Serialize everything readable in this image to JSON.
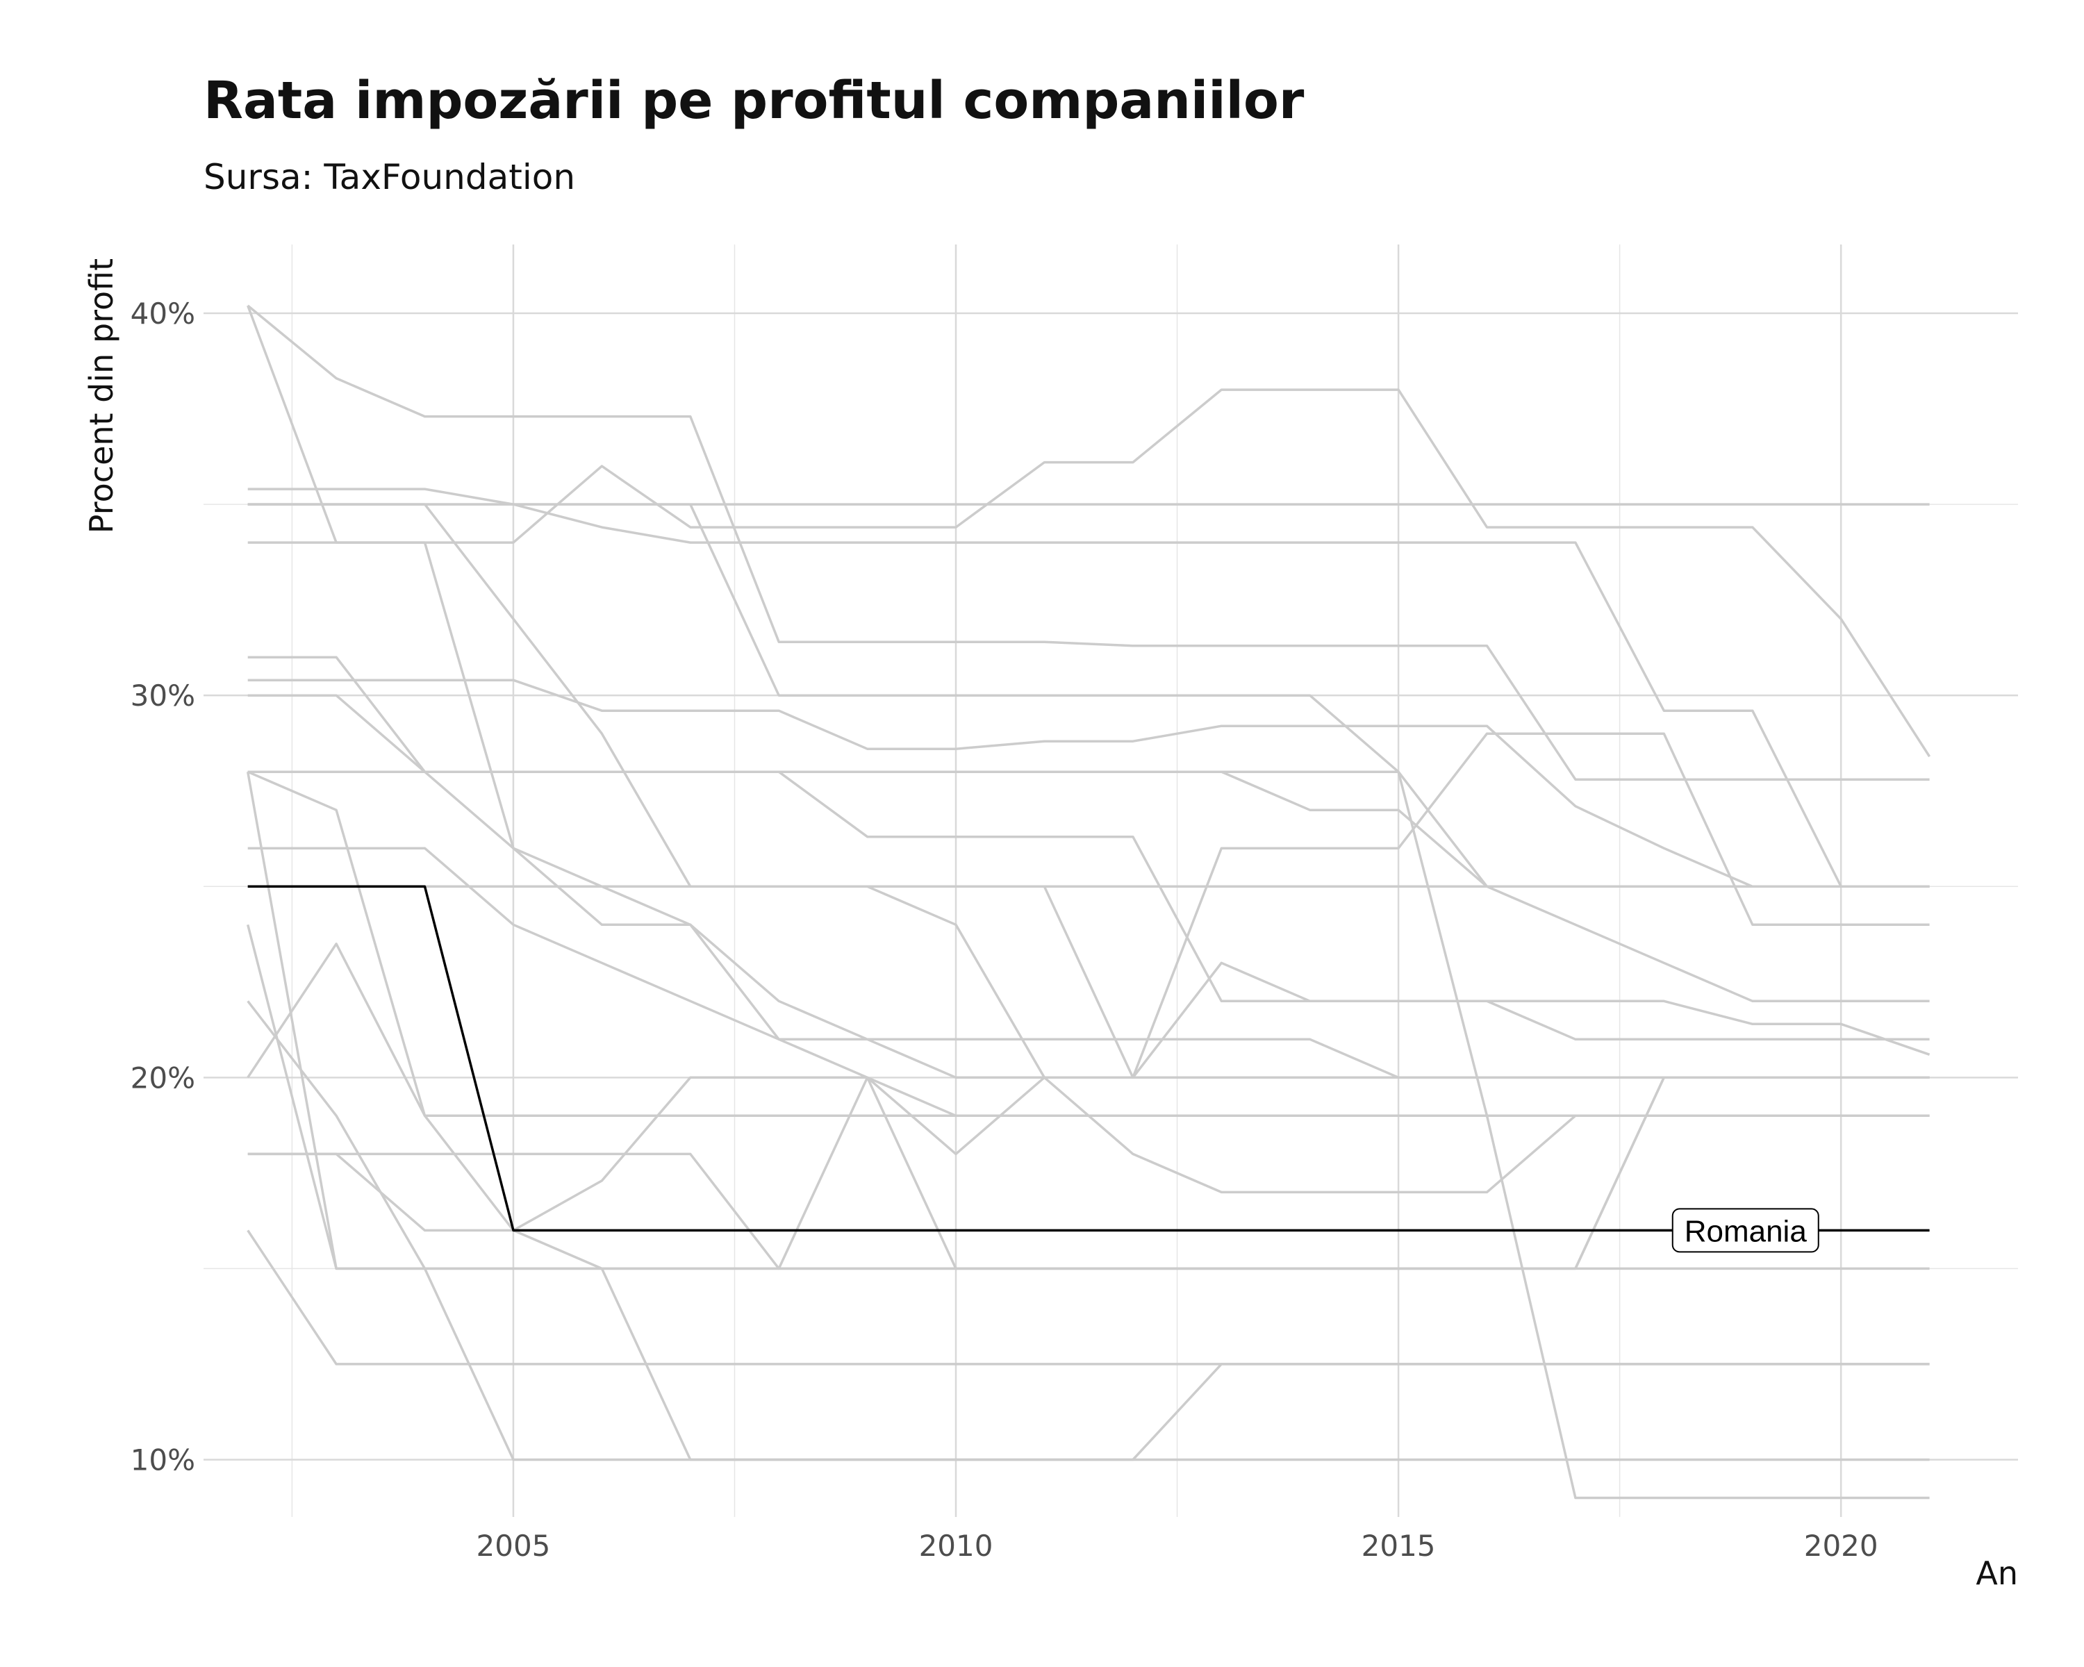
{
  "chart_data": {
    "type": "line",
    "title": "Rata impozării pe profitul companiilor",
    "subtitle": "Sursa: TaxFoundation",
    "xlabel": "An",
    "ylabel": "Procent din profit",
    "xlim": [
      2001.5,
      2022
    ],
    "ylim": [
      8.5,
      41.8
    ],
    "x_ticks": [
      2005,
      2010,
      2015,
      2020
    ],
    "x_minor_ticks": [
      2002.5,
      2007.5,
      2012.5,
      2017.5
    ],
    "y_ticks": [
      10,
      20,
      30,
      40
    ],
    "y_tick_labels": [
      "10%",
      "20%",
      "30%",
      "40%"
    ],
    "y_minor_ticks": [
      15,
      25,
      35
    ],
    "grid": true,
    "highlight_color": "#000000",
    "background_color": "#cccccc",
    "x": [
      2002,
      2003,
      2004,
      2005,
      2006,
      2007,
      2008,
      2009,
      2010,
      2011,
      2012,
      2013,
      2014,
      2015,
      2016,
      2017,
      2018,
      2019,
      2020,
      2021
    ],
    "highlight": {
      "name": "Romania",
      "values": [
        25,
        25,
        25,
        16,
        16,
        16,
        16,
        16,
        16,
        16,
        16,
        16,
        16,
        16,
        16,
        16,
        16,
        16,
        16,
        16
      ]
    },
    "series": [
      {
        "values": [
          40.2,
          38.3,
          37.3,
          37.3,
          37.3,
          37.3,
          31.4,
          31.4,
          31.4,
          31.4,
          31.3,
          31.3,
          31.3,
          31.3,
          31.3,
          27.8,
          27.8,
          27.8,
          27.8,
          27.8
        ]
      },
      {
        "values": [
          40.2,
          34,
          34,
          34,
          36,
          34.4,
          34.4,
          34.4,
          34.4,
          36.1,
          36.1,
          38,
          38,
          38,
          34.4,
          34.4,
          34.4,
          34.4,
          32.0,
          28.4
        ]
      },
      {
        "values": [
          35,
          35,
          35,
          35,
          35,
          35,
          35,
          35,
          35,
          35,
          35,
          35,
          35,
          35,
          35,
          35,
          35,
          35,
          35,
          35
        ]
      },
      {
        "values": [
          35.4,
          35.4,
          35.4,
          35,
          34.4,
          34,
          34,
          34,
          34,
          34,
          34,
          34,
          34,
          34,
          34,
          34,
          29.6,
          29.6,
          25,
          25
        ]
      },
      {
        "values": [
          35,
          35,
          35,
          32,
          29,
          25,
          25,
          25,
          25,
          25,
          25,
          25,
          25,
          25,
          25,
          25,
          25,
          25,
          25,
          25
        ]
      },
      {
        "values": [
          34,
          34,
          34,
          26,
          25,
          24,
          22,
          21,
          20,
          20,
          20,
          20,
          20,
          20,
          20,
          20,
          20,
          20,
          20,
          20
        ]
      },
      {
        "values": [
          31,
          31,
          28,
          26,
          24,
          24,
          21,
          21,
          21,
          21,
          21,
          21,
          21,
          20,
          20,
          20,
          20,
          20,
          20,
          20
        ]
      },
      {
        "values": [
          30.4,
          30.4,
          30.4,
          30.4,
          29.6,
          29.6,
          29.6,
          28.6,
          28.6,
          28.8,
          28.8,
          29.2,
          29.2,
          29.2,
          29.2,
          27.1,
          26.0,
          25,
          25,
          25
        ]
      },
      {
        "values": [
          28,
          28,
          28,
          28,
          28,
          28,
          28,
          26.3,
          26.3,
          26.3,
          26.3,
          22,
          22,
          22,
          22,
          22,
          22,
          21.4,
          21.4,
          20.6
        ]
      },
      {
        "values": [
          28,
          27,
          19,
          19,
          19,
          19,
          19,
          19,
          19,
          19,
          19,
          19,
          19,
          19,
          19,
          19,
          19,
          19,
          19,
          19
        ]
      },
      {
        "values": [
          28,
          15,
          15,
          15,
          15,
          15,
          15,
          15,
          15,
          15,
          15,
          15,
          15,
          15,
          15,
          15,
          15,
          15,
          15,
          15
        ]
      },
      {
        "values": [
          26,
          26,
          26,
          24,
          23,
          22,
          21,
          20,
          19,
          19,
          19,
          19,
          19,
          19,
          19,
          19,
          19,
          19,
          19,
          19
        ]
      },
      {
        "values": [
          25,
          25,
          25,
          25,
          25,
          25,
          25,
          25,
          24,
          20,
          20,
          23,
          22,
          22,
          22,
          21,
          21,
          21,
          21,
          21
        ]
      },
      {
        "values": [
          24,
          15,
          15,
          15,
          15,
          15,
          15,
          15,
          15,
          15,
          15,
          15,
          15,
          15,
          15,
          15,
          20,
          20,
          20,
          20
        ]
      },
      {
        "values": [
          22,
          19,
          15,
          10,
          10,
          10,
          10,
          10,
          10,
          10,
          10,
          12.5,
          12.5,
          12.5,
          12.5,
          12.5,
          12.5,
          12.5,
          12.5,
          12.5
        ]
      },
      {
        "values": [
          20,
          23.5,
          19,
          16,
          17.3,
          20,
          20,
          20,
          15,
          15,
          15,
          15,
          15,
          15,
          15,
          15,
          20,
          20,
          20,
          20
        ]
      },
      {
        "values": [
          18,
          18,
          18,
          18,
          18,
          18,
          15,
          20,
          18,
          20,
          18,
          17,
          17,
          17,
          17,
          19,
          19,
          19,
          19,
          19
        ]
      },
      {
        "values": [
          18,
          18,
          16,
          16,
          15,
          10,
          10,
          10,
          10,
          10,
          10,
          10,
          10,
          10,
          10,
          10,
          10,
          10,
          10,
          10
        ]
      },
      {
        "values": [
          16,
          12.5,
          12.5,
          12.5,
          12.5,
          12.5,
          12.5,
          12.5,
          12.5,
          12.5,
          12.5,
          12.5,
          12.5,
          12.5,
          12.5,
          12.5,
          12.5,
          12.5,
          12.5,
          12.5
        ]
      },
      {
        "values": [
          28,
          28,
          28,
          28,
          28,
          28,
          28,
          28,
          28,
          28,
          28,
          28,
          27,
          27,
          25,
          24,
          23,
          22,
          22,
          22
        ]
      },
      {
        "values": [
          25,
          25,
          25,
          25,
          25,
          25,
          25,
          25,
          25,
          25,
          20,
          26,
          26,
          26,
          29,
          29,
          29,
          24,
          24,
          24
        ]
      },
      {
        "values": [
          30,
          30,
          28,
          28,
          28,
          28,
          28,
          28,
          28,
          28,
          28,
          28,
          28,
          28,
          19,
          9,
          9,
          9,
          9,
          9
        ]
      },
      {
        "values": [
          35,
          35,
          35,
          35,
          35,
          35,
          30,
          30,
          30,
          30,
          30,
          30,
          30,
          28,
          25,
          25,
          25,
          25,
          25,
          25
        ]
      }
    ]
  }
}
